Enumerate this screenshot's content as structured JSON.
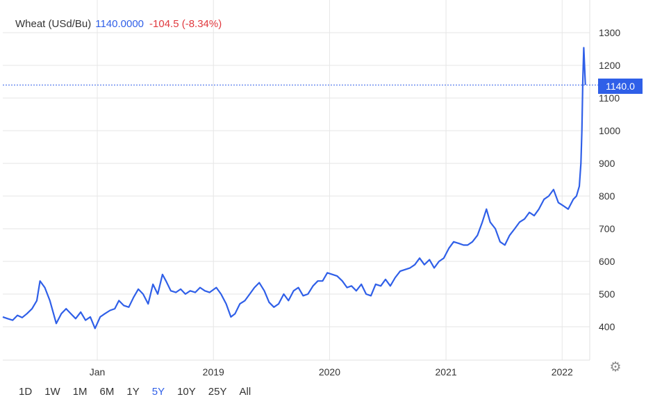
{
  "legend": {
    "name": "Wheat (USd/Bu)",
    "price": "1140.0000",
    "change": "-104.5 (-8.34%)"
  },
  "last_price_label": "1140.0",
  "ranges": [
    {
      "label": "1D",
      "active": false
    },
    {
      "label": "1W",
      "active": false
    },
    {
      "label": "1M",
      "active": false
    },
    {
      "label": "6M",
      "active": false
    },
    {
      "label": "1Y",
      "active": false
    },
    {
      "label": "5Y",
      "active": true
    },
    {
      "label": "10Y",
      "active": false
    },
    {
      "label": "25Y",
      "active": false
    },
    {
      "label": "All",
      "active": false
    }
  ],
  "colors": {
    "line": "#2f5fe8",
    "grid": "#e6e6e6",
    "price": "#2f5fe8",
    "change": "#e0393e"
  },
  "icons": {
    "settings": "gear-icon"
  },
  "chart_data": {
    "type": "line",
    "title": "",
    "xlabel": "",
    "ylabel": "",
    "ylim": [
      300,
      1300
    ],
    "y_ticks": [
      400,
      500,
      600,
      700,
      800,
      900,
      1000,
      1100,
      1200,
      1300
    ],
    "x_ticks": [
      {
        "label": "Jan",
        "x": "2018-01-01"
      },
      {
        "label": "2019",
        "x": "2019-01-01"
      },
      {
        "label": "2020",
        "x": "2020-01-01"
      },
      {
        "label": "2021",
        "x": "2021-01-01"
      },
      {
        "label": "2022",
        "x": "2022-01-01"
      }
    ],
    "xlim": [
      "2017-03-10",
      "2022-03-20"
    ],
    "grid": true,
    "last_value": 1140,
    "series": [
      {
        "x": [
          "2017-03-10",
          "2017-03-25",
          "2017-04-10",
          "2017-04-25",
          "2017-05-10",
          "2017-05-25",
          "2017-06-10",
          "2017-06-25",
          "2017-07-05",
          "2017-07-20",
          "2017-08-05",
          "2017-08-25",
          "2017-09-10",
          "2017-09-25",
          "2017-10-10",
          "2017-10-25",
          "2017-11-10",
          "2017-11-25",
          "2017-12-10",
          "2017-12-25",
          "2018-01-10",
          "2018-01-25",
          "2018-02-10",
          "2018-02-25",
          "2018-03-10",
          "2018-03-25",
          "2018-04-10",
          "2018-04-25",
          "2018-05-10",
          "2018-05-25",
          "2018-06-10",
          "2018-06-25",
          "2018-07-10",
          "2018-07-25",
          "2018-08-05",
          "2018-08-20",
          "2018-09-05",
          "2018-09-20",
          "2018-10-05",
          "2018-10-20",
          "2018-11-05",
          "2018-11-20",
          "2018-12-05",
          "2018-12-20",
          "2019-01-10",
          "2019-01-25",
          "2019-02-10",
          "2019-02-25",
          "2019-03-10",
          "2019-03-25",
          "2019-04-10",
          "2019-04-25",
          "2019-05-10",
          "2019-05-25",
          "2019-06-10",
          "2019-06-25",
          "2019-07-10",
          "2019-07-25",
          "2019-08-10",
          "2019-08-25",
          "2019-09-10",
          "2019-09-25",
          "2019-10-10",
          "2019-10-25",
          "2019-11-10",
          "2019-11-25",
          "2019-12-10",
          "2019-12-25",
          "2020-01-10",
          "2020-01-25",
          "2020-02-10",
          "2020-02-25",
          "2020-03-10",
          "2020-03-25",
          "2020-04-10",
          "2020-04-25",
          "2020-05-10",
          "2020-05-25",
          "2020-06-10",
          "2020-06-25",
          "2020-07-10",
          "2020-07-25",
          "2020-08-10",
          "2020-08-25",
          "2020-09-10",
          "2020-09-25",
          "2020-10-10",
          "2020-10-25",
          "2020-11-10",
          "2020-11-25",
          "2020-12-10",
          "2020-12-25",
          "2021-01-10",
          "2021-01-25",
          "2021-02-10",
          "2021-02-25",
          "2021-03-10",
          "2021-03-25",
          "2021-04-10",
          "2021-04-25",
          "2021-05-08",
          "2021-05-20",
          "2021-06-05",
          "2021-06-20",
          "2021-07-05",
          "2021-07-20",
          "2021-08-05",
          "2021-08-20",
          "2021-09-05",
          "2021-09-20",
          "2021-10-05",
          "2021-10-20",
          "2021-11-05",
          "2021-11-20",
          "2021-12-05",
          "2021-12-20",
          "2022-01-05",
          "2022-01-20",
          "2022-02-05",
          "2022-02-15",
          "2022-02-24",
          "2022-03-01",
          "2022-03-04",
          "2022-03-07",
          "2022-03-10",
          "2022-03-15"
        ],
        "values": [
          430,
          425,
          420,
          435,
          428,
          440,
          455,
          480,
          540,
          520,
          480,
          410,
          440,
          455,
          440,
          425,
          445,
          420,
          430,
          395,
          430,
          440,
          450,
          455,
          480,
          465,
          460,
          490,
          515,
          500,
          470,
          530,
          500,
          560,
          540,
          510,
          505,
          515,
          500,
          510,
          505,
          520,
          510,
          505,
          520,
          500,
          470,
          430,
          440,
          470,
          480,
          500,
          520,
          535,
          510,
          475,
          460,
          470,
          500,
          480,
          510,
          520,
          495,
          500,
          525,
          540,
          540,
          565,
          560,
          555,
          540,
          520,
          525,
          510,
          530,
          500,
          495,
          530,
          525,
          545,
          525,
          550,
          570,
          575,
          580,
          590,
          610,
          590,
          605,
          580,
          600,
          610,
          640,
          660,
          655,
          650,
          650,
          660,
          680,
          720,
          760,
          720,
          700,
          660,
          650,
          680,
          700,
          720,
          730,
          750,
          740,
          760,
          790,
          800,
          820,
          780,
          770,
          760,
          790,
          800,
          830,
          900,
          1000,
          1150,
          1254,
          1140
        ]
      }
    ]
  }
}
